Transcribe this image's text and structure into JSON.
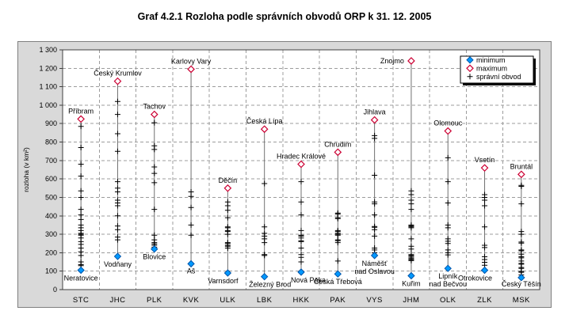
{
  "page": {
    "title": "Graf 4.2.1 Rozloha podle správních obvodů ORP k 31. 12. 2005"
  },
  "colors": {
    "min_marker": "#0099FF",
    "min_marker_edge": "#0055AA",
    "max_marker": "#CC0033",
    "plus_marker": "#000000",
    "chart_bg": "#D9D9D9",
    "plot_bg": "#FFFFFF",
    "grid": "#9C9C9C",
    "range_line": "#707070"
  },
  "chart_data": {
    "type": "scatter",
    "title": "Graf 4.2.1 Rozloha podle správních obvodů ORP k 31. 12. 2005",
    "xlabel": "",
    "ylabel": "rozloha (v km²)",
    "ylim": [
      0,
      1300
    ],
    "ytick_step": 100,
    "grid": true,
    "legend_position": "top-right",
    "legend": [
      {
        "marker": "diamond-filled",
        "color": "#0099FF",
        "label": "minimum"
      },
      {
        "marker": "diamond-open",
        "color": "#CC0033",
        "label": "maximum"
      },
      {
        "marker": "plus",
        "color": "#000000",
        "label": "správní obvod"
      }
    ],
    "units": "km²",
    "categories": [
      "STC",
      "JHC",
      "PLK",
      "KVK",
      "ULK",
      "LBK",
      "HKK",
      "PAK",
      "VYS",
      "JHM",
      "OLK",
      "ZLK",
      "MSK"
    ],
    "regions": [
      {
        "code": "STC",
        "max": {
          "name": "Příbram",
          "value": 925
        },
        "min": {
          "name": "Neratovice",
          "value": 105
        },
        "districts": [
          885,
          770,
          680,
          615,
          535,
          500,
          435,
          405,
          380,
          350,
          335,
          320,
          305,
          300,
          295,
          280,
          260,
          245,
          225,
          205,
          185,
          150,
          135,
          130
        ]
      },
      {
        "code": "JHC",
        "max": {
          "name": "Český Krumlov",
          "value": 1130
        },
        "min": {
          "name": "Vodňany",
          "value": 180
        },
        "districts": [
          1020,
          950,
          845,
          750,
          585,
          550,
          530,
          485,
          470,
          455,
          400,
          345,
          325,
          285,
          270
        ]
      },
      {
        "code": "PLK",
        "max": {
          "name": "Tachov",
          "value": 950
        },
        "min": {
          "name": "Blovice",
          "value": 220
        },
        "districts": [
          905,
          780,
          760,
          665,
          630,
          580,
          435,
          295,
          270,
          255,
          248,
          240,
          230
        ]
      },
      {
        "code": "KVK",
        "max": {
          "name": "Karlovy Vary",
          "value": 1195
        },
        "min": {
          "name": "Aš",
          "value": 140
        },
        "districts": [
          530,
          505,
          445,
          350,
          295
        ]
      },
      {
        "code": "ULK",
        "max": {
          "name": "Děčín",
          "value": 550
        },
        "min": {
          "name": "Varnsdorf",
          "value": 90
        },
        "districts": [
          475,
          455,
          430,
          390,
          340,
          335,
          320,
          315,
          300,
          255,
          250,
          240,
          235,
          225
        ]
      },
      {
        "code": "LBK",
        "max": {
          "name": "Česká Lípa",
          "value": 870
        },
        "min": {
          "name": "Železný Brod",
          "value": 70
        },
        "districts": [
          575,
          340,
          305,
          290,
          275,
          255,
          190,
          185
        ]
      },
      {
        "code": "HKK",
        "max": {
          "name": "Hradec Králové",
          "value": 680
        },
        "min": {
          "name": "Nová Paka",
          "value": 95
        },
        "districts": [
          585,
          475,
          405,
          320,
          295,
          290,
          280,
          265,
          260,
          225,
          190,
          175,
          150
        ]
      },
      {
        "code": "PAK",
        "max": {
          "name": "Chrudim",
          "value": 745
        },
        "min": {
          "name": "Česká Třebová",
          "value": 85
        },
        "districts": [
          415,
          410,
          390,
          385,
          320,
          315,
          305,
          300,
          295,
          270,
          265,
          255,
          155
        ]
      },
      {
        "code": "VYS",
        "max": {
          "name": "Jihlava",
          "value": 920
        },
        "min": {
          "name": "Náměšť nad Oslavou",
          "value": 185
        },
        "districts": [
          835,
          820,
          620,
          475,
          465,
          405,
          342,
          338,
          325,
          290,
          225,
          215,
          200
        ]
      },
      {
        "code": "JHM",
        "max": {
          "name": "Znojmo",
          "value": 1240
        },
        "min": {
          "name": "Kuřim",
          "value": 75
        },
        "districts": [
          535,
          515,
          485,
          465,
          435,
          350,
          345,
          340,
          335,
          275,
          235,
          220,
          190,
          185,
          180,
          172,
          167,
          162,
          157
        ]
      },
      {
        "code": "OLK",
        "max": {
          "name": "Olomouc",
          "value": 860
        },
        "min": {
          "name": "Lipník nad Bečvou",
          "value": 115
        },
        "districts": [
          715,
          585,
          470,
          350,
          335,
          275,
          262,
          250,
          215,
          200,
          188
        ]
      },
      {
        "code": "ZLK",
        "max": {
          "name": "Vsetín",
          "value": 660
        },
        "min": {
          "name": "Otrokovice",
          "value": 105
        },
        "districts": [
          515,
          500,
          485,
          455,
          340,
          240,
          228,
          178,
          163,
          148,
          132
        ]
      },
      {
        "code": "MSK",
        "max": {
          "name": "Bruntál",
          "value": 625
        },
        "min": {
          "name": "Český Těšín",
          "value": 65
        },
        "districts": [
          565,
          560,
          465,
          315,
          300,
          258,
          252,
          215,
          210,
          192,
          178,
          172,
          155,
          142,
          138,
          120,
          115,
          98,
          94,
          80
        ]
      }
    ]
  }
}
